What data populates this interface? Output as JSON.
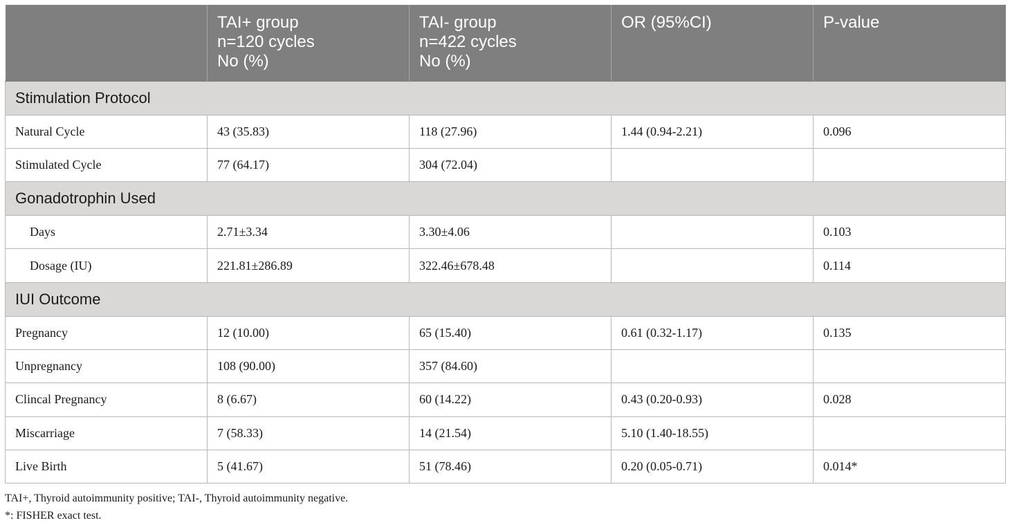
{
  "table": {
    "header": [
      [
        "",
        ""
      ],
      [
        "TAI+ group",
        "n=120 cycles",
        "No (%)"
      ],
      [
        "TAI- group",
        "n=422 cycles",
        "No (%)"
      ],
      [
        "OR (95%CI)"
      ],
      [
        "P-value"
      ]
    ],
    "sections": [
      {
        "title": "Stimulation Protocol",
        "rows": [
          {
            "label": "Natural Cycle",
            "tai_pos": "43 (35.83)",
            "tai_neg": "118 (27.96)",
            "or": "1.44 (0.94-2.21)",
            "p": "0.096"
          },
          {
            "label": "Stimulated Cycle",
            "tai_pos": "77 (64.17)",
            "tai_neg": "304 (72.04)",
            "or": "",
            "p": ""
          }
        ]
      },
      {
        "title": "Gonadotrophin Used",
        "rows": [
          {
            "label": "Days",
            "tai_pos": "2.71±3.34",
            "tai_neg": "3.30±4.06",
            "or": "",
            "p": "0.103"
          },
          {
            "label": "Dosage (IU)",
            "tai_pos": "221.81±286.89",
            "tai_neg": "322.46±678.48",
            "or": "",
            "p": "0.114"
          }
        ]
      },
      {
        "title": "IUI Outcome",
        "rows": [
          {
            "label": "Pregnancy",
            "tai_pos": "12 (10.00)",
            "tai_neg": "65 (15.40)",
            "or": "0.61 (0.32-1.17)",
            "p": "0.135"
          },
          {
            "label": "Unpregnancy",
            "tai_pos": "108 (90.00)",
            "tai_neg": "357 (84.60)",
            "or": "",
            "p": ""
          },
          {
            "label": "Clincal Pregnancy",
            "tai_pos": "8 (6.67)",
            "tai_neg": "60 (14.22)",
            "or": "0.43 (0.20-0.93)",
            "p": "0.028"
          },
          {
            "label": "Miscarriage",
            "tai_pos": "7 (58.33)",
            "tai_neg": "14 (21.54)",
            "or": "5.10 (1.40-18.55)",
            "p": ""
          },
          {
            "label": "Live Birth",
            "tai_pos": "5 (41.67)",
            "tai_neg": "51 (78.46)",
            "or": "0.20 (0.05-0.71)",
            "p": "0.014*"
          }
        ]
      }
    ]
  },
  "notes": [
    "TAI+, Thyroid autoimmunity positive; TAI-, Thyroid autoimmunity negative.",
    "*: FISHER exact test."
  ],
  "colors": {
    "header_bg": "#7f7f7f",
    "section_bg": "#d9d8d7",
    "border": "#b8b8b8"
  }
}
